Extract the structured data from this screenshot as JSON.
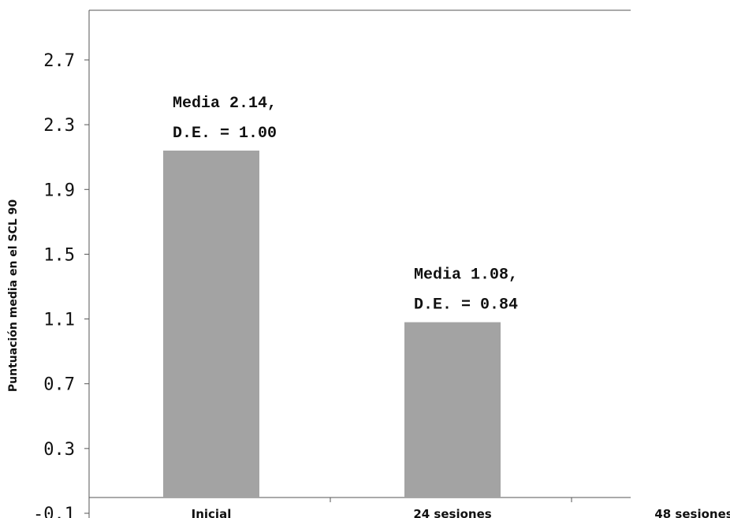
{
  "chart_data": {
    "type": "bar",
    "ylabel": "Puntuación media en el SCL 90",
    "ylim": [
      -0.1,
      3.0
    ],
    "yticks": [
      "-0.1",
      "0.3",
      "0.7",
      "1.1",
      "1.5",
      "1.9",
      "2.3",
      "2.7"
    ],
    "categories": [
      "Inicial",
      "24 sesiones",
      "48 sesiones"
    ],
    "values": [
      2.14,
      1.08,
      null
    ],
    "bar_color": "#a3a3a3",
    "data_labels": [
      [
        "Media 2.14,",
        "D.E. = 1.00"
      ],
      [
        "Media 1.08,",
        "D.E. = 0.84"
      ]
    ]
  }
}
